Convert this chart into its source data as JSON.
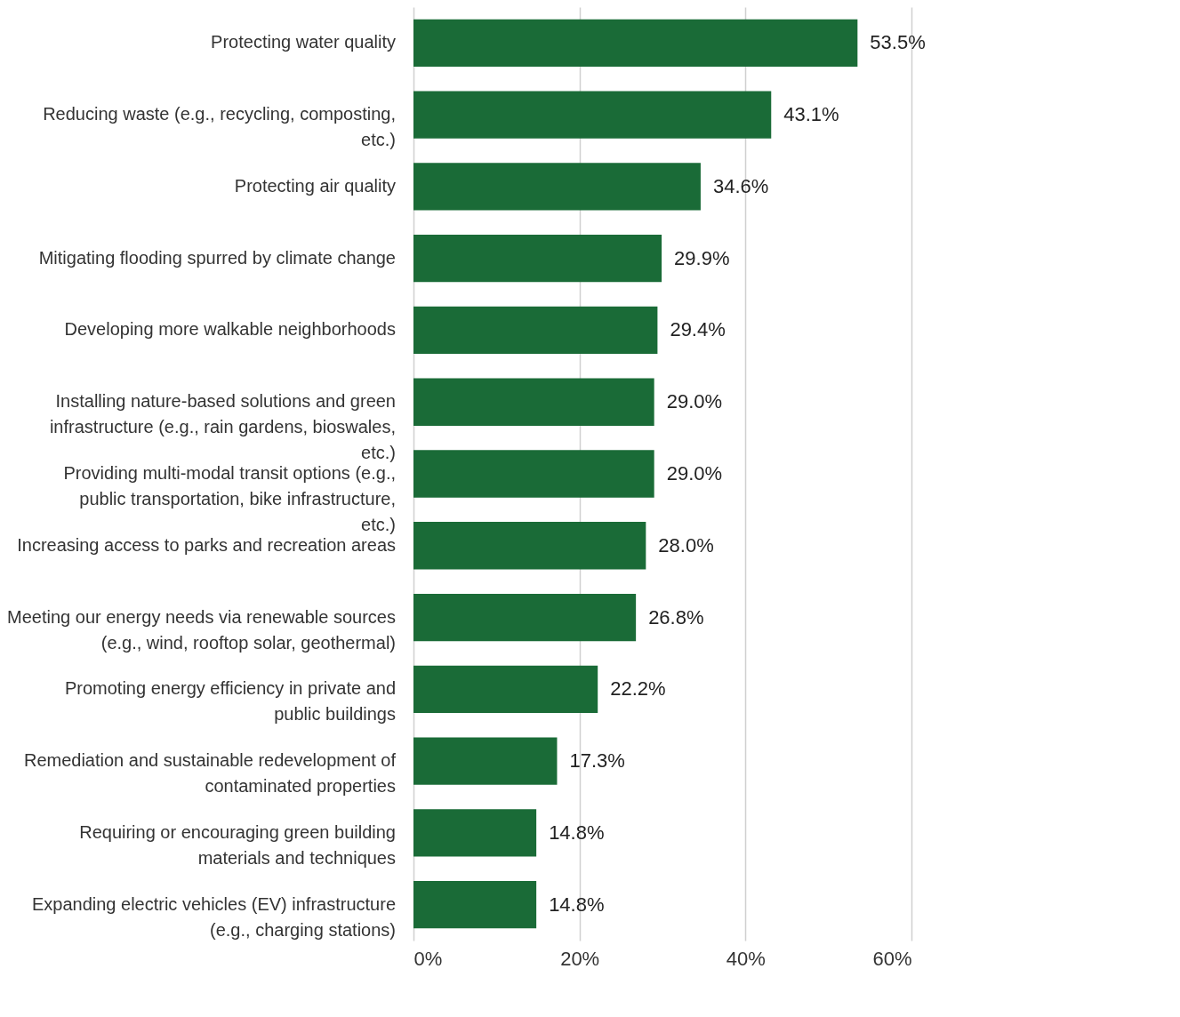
{
  "chart_data": {
    "type": "bar",
    "orientation": "horizontal",
    "categories": [
      "Protecting water quality",
      "Reducing waste (e.g., recycling, composting, etc.)",
      "Protecting air quality",
      "Mitigating flooding spurred by climate change",
      "Developing more walkable neighborhoods",
      "Installing nature-based solutions and green infrastructure (e.g., rain gardens, bioswales, etc.)",
      "Providing multi-modal transit options (e.g., public transportation, bike infrastructure, etc.)",
      "Increasing access to parks and recreation areas",
      "Meeting our energy needs via renewable sources (e.g., wind, rooftop solar, geothermal)",
      "Promoting energy efficiency in private and public buildings",
      "Remediation and sustainable redevelopment of contaminated properties",
      "Requiring or encouraging green building materials and techniques",
      "Expanding electric vehicles (EV) infrastructure (e.g., charging stations)"
    ],
    "values": [
      53.5,
      43.1,
      34.6,
      29.9,
      29.4,
      29.0,
      29.0,
      28.0,
      26.8,
      22.2,
      17.3,
      14.8,
      14.8
    ],
    "value_labels": [
      "53.5%",
      "43.1%",
      "34.6%",
      "29.9%",
      "29.4%",
      "29.0%",
      "29.0%",
      "28.0%",
      "26.8%",
      "22.2%",
      "17.3%",
      "14.8%",
      "14.8%"
    ],
    "color": "#1a6b37",
    "xlim": [
      0,
      60
    ],
    "xticks": [
      {
        "value": 0,
        "label": "0%"
      },
      {
        "value": 20,
        "label": "20%"
      },
      {
        "value": 40,
        "label": "40%"
      },
      {
        "value": 60,
        "label": "60%"
      }
    ],
    "grid": "x"
  }
}
